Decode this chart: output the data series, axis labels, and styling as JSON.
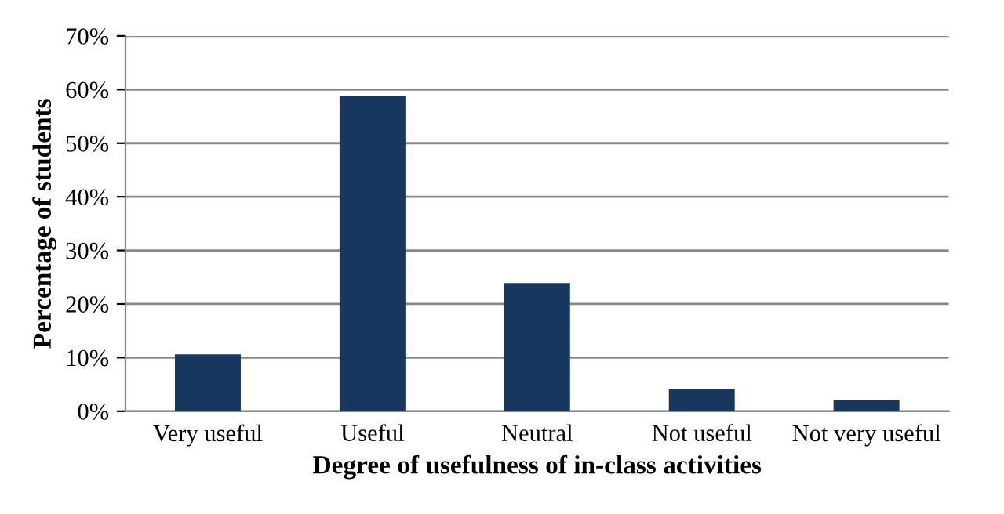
{
  "chart_data": {
    "type": "bar",
    "xlabel": "Degree of usefulness of in-class activities",
    "ylabel": "Percentage of students",
    "categories": [
      "Very useful",
      "Useful",
      "Neutral",
      "Not useful",
      "Not very useful"
    ],
    "values": [
      10.6,
      58.8,
      23.9,
      4.2,
      2.0
    ],
    "color": "#17375e",
    "ylim": [
      0,
      70
    ],
    "yticks": [
      {
        "value": 0,
        "label": "0%"
      },
      {
        "value": 10,
        "label": "10%"
      },
      {
        "value": 20,
        "label": "20%"
      },
      {
        "value": 30,
        "label": "30%"
      },
      {
        "value": 40,
        "label": "40%"
      },
      {
        "value": 50,
        "label": "50%"
      },
      {
        "value": 60,
        "label": "60%"
      },
      {
        "value": 70,
        "label": "70%"
      }
    ],
    "grid": "y",
    "legend": false
  }
}
